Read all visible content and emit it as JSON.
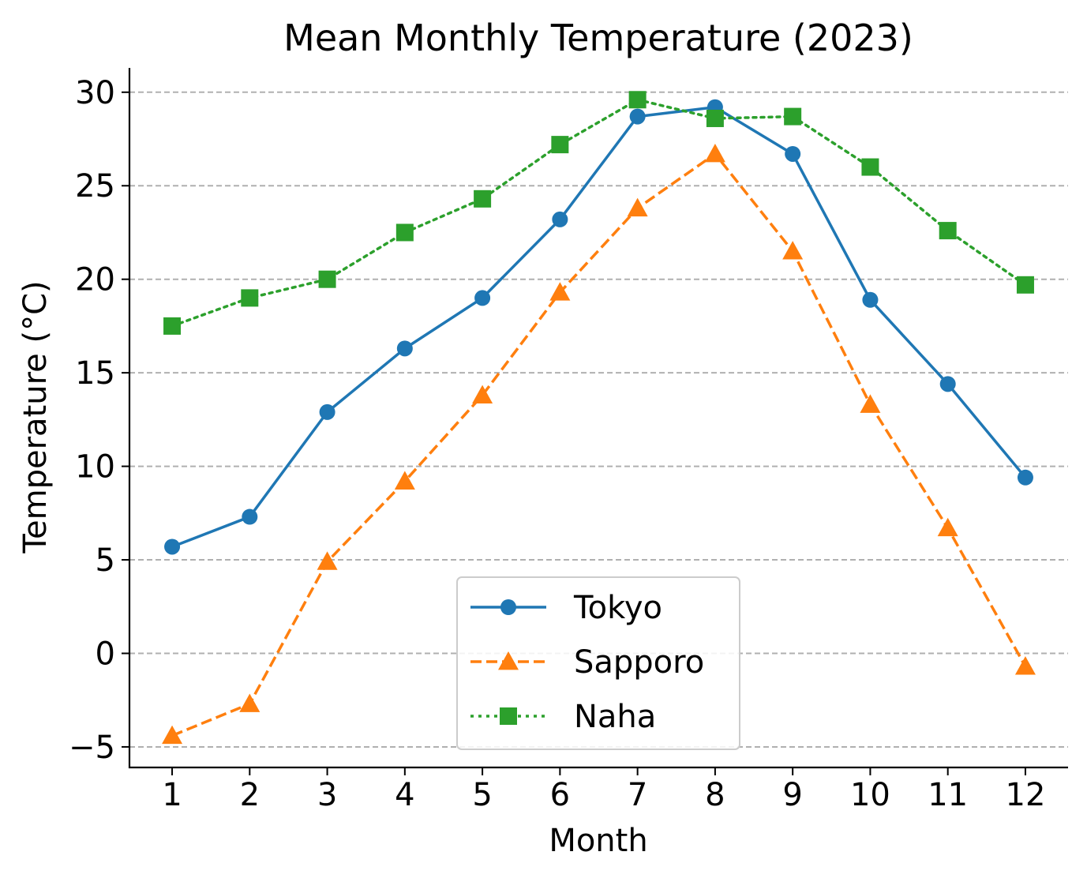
{
  "chart_data": {
    "type": "line",
    "title": "Mean Monthly Temperature (2023)",
    "xlabel": "Month",
    "ylabel": "Temperature (°C)",
    "x": [
      1,
      2,
      3,
      4,
      5,
      6,
      7,
      8,
      9,
      10,
      11,
      12
    ],
    "x_tick_labels": [
      "1",
      "2",
      "3",
      "4",
      "5",
      "6",
      "7",
      "8",
      "9",
      "10",
      "11",
      "12"
    ],
    "yticks": [
      -5,
      0,
      5,
      10,
      15,
      20,
      25,
      30
    ],
    "y_tick_labels": [
      "−5",
      "0",
      "5",
      "10",
      "15",
      "20",
      "25",
      "30"
    ],
    "xlim": [
      0.45,
      12.55
    ],
    "ylim": [
      -6.1,
      31.3
    ],
    "grid": "y, dashed",
    "legend_position": "bottom-center",
    "series": [
      {
        "name": "Tokyo",
        "color": "#1f77b4",
        "line_style": "solid",
        "marker": "circle",
        "values": [
          5.7,
          7.3,
          12.9,
          16.3,
          19.0,
          23.2,
          28.7,
          29.2,
          26.7,
          18.9,
          14.4,
          9.4
        ]
      },
      {
        "name": "Sapporo",
        "color": "#ff7f0e",
        "line_style": "dashed",
        "marker": "triangle",
        "values": [
          -4.4,
          -2.7,
          4.9,
          9.2,
          13.8,
          19.3,
          23.8,
          26.7,
          21.5,
          13.3,
          6.7,
          -0.7
        ]
      },
      {
        "name": "Naha",
        "color": "#2ca02c",
        "line_style": "dotted",
        "marker": "square",
        "values": [
          17.5,
          19.0,
          20.0,
          22.5,
          24.3,
          27.2,
          29.6,
          28.6,
          28.7,
          26.0,
          22.6,
          19.7
        ]
      }
    ]
  }
}
